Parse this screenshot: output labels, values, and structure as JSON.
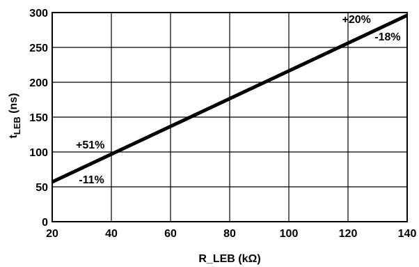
{
  "chart_data": {
    "type": "line",
    "title": "",
    "xlabel": "R_LEB (kΩ)",
    "ylabel_main": "t",
    "ylabel_sub": "LEB",
    "ylabel_unit": " (ns)",
    "xlim": [
      20,
      140
    ],
    "ylim": [
      0,
      300
    ],
    "x_ticks": [
      20,
      40,
      60,
      80,
      100,
      120,
      140
    ],
    "y_ticks": [
      0,
      50,
      100,
      150,
      200,
      250,
      300
    ],
    "grid": true,
    "series": [
      {
        "x": [
          20,
          140
        ],
        "y": [
          57,
          296
        ]
      }
    ],
    "annotations": [
      {
        "text": "+51%",
        "x": 28,
        "y": 105
      },
      {
        "text": "-11%",
        "x": 29,
        "y": 55
      },
      {
        "text": "+20%",
        "x": 118,
        "y": 285
      },
      {
        "text": "-18%",
        "x": 129,
        "y": 260
      }
    ],
    "colors": {
      "line": "#000000",
      "grid": "#000000",
      "background": "#ffffff"
    }
  }
}
